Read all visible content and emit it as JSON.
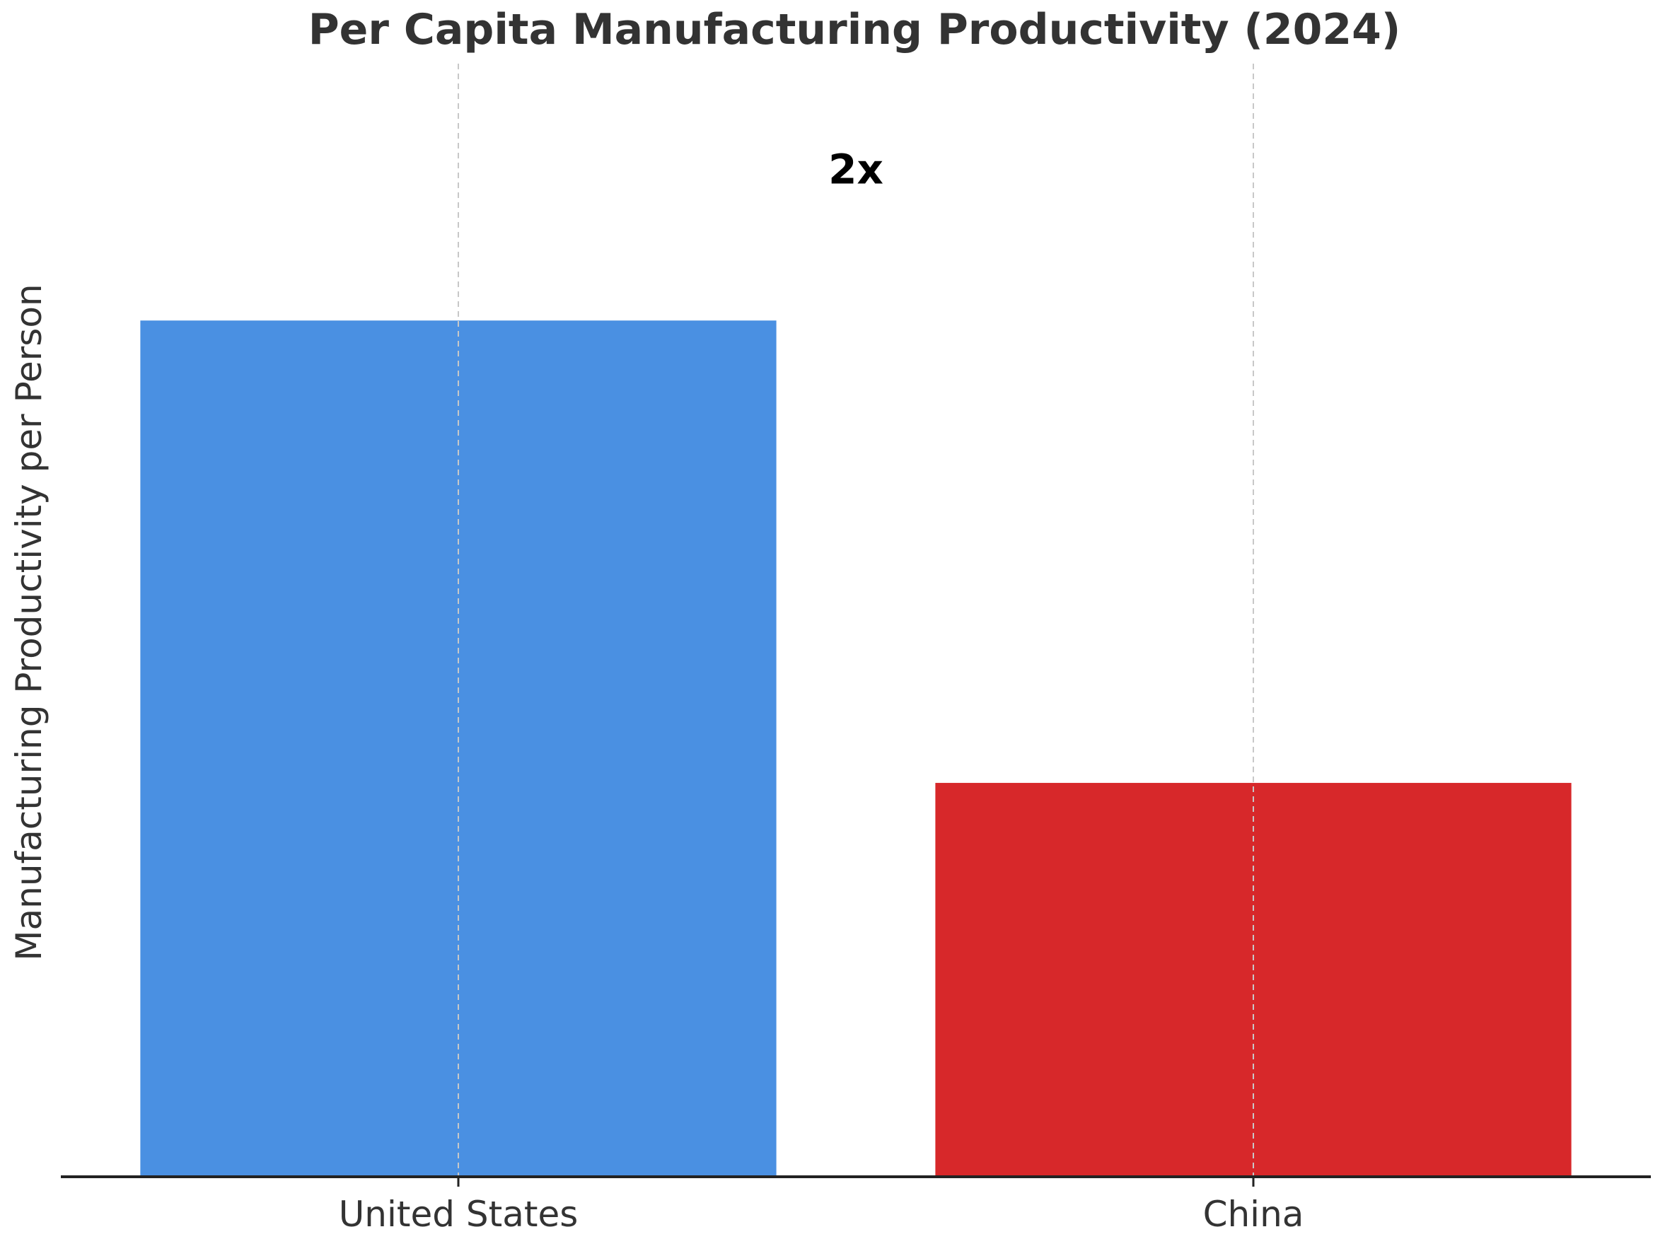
{
  "chart_data": {
    "type": "bar",
    "title": "Per Capita Manufacturing Productivity (2024)",
    "xlabel": "",
    "ylabel": "Manufacturing Productivity per Person",
    "categories": [
      "United States",
      "China"
    ],
    "values": [
      2,
      0.92
    ],
    "colors": [
      "#4a90e2",
      "#d7282a"
    ],
    "ylim": [
      0,
      2.6
    ],
    "grid": "vertical dashed",
    "annotations": [
      {
        "text": "2x",
        "x": 0.5,
        "y": 2.32
      }
    ]
  }
}
